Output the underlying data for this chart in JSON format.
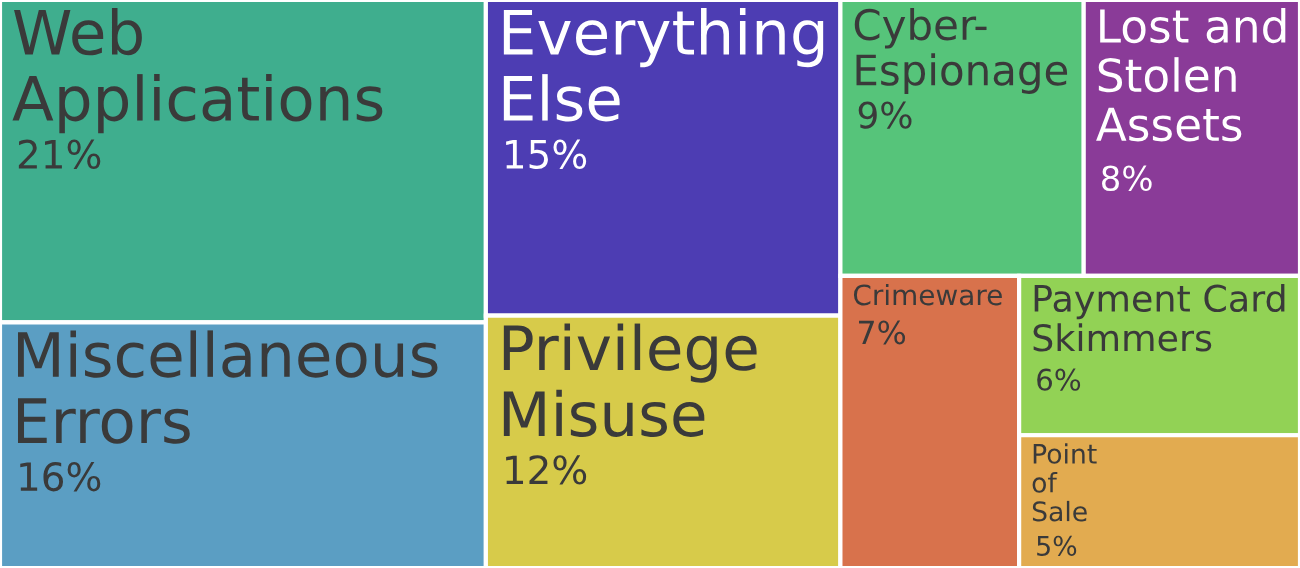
{
  "chart_data": {
    "type": "other",
    "categories": [
      "Web\nApplications",
      "Miscellaneous\nErrors",
      "Everything\nElse",
      "Privilege\nMisuse",
      "Cyber-\nEspionage",
      "Lost and\nStolen\nAssets",
      "Crimeware",
      "Payment Card\nSkimmers",
      "Point\nof\nSale"
    ],
    "values": [
      21,
      16,
      15,
      12,
      9,
      8,
      7,
      6,
      5
    ],
    "value_labels": [
      "21%",
      "16%",
      "15%",
      "12%",
      "9%",
      "8%",
      "7%",
      "6%",
      "5%"
    ],
    "colors": [
      "#3fae8e",
      "#5b9ec3",
      "#4d3db3",
      "#d7cb4a",
      "#56c47a",
      "#8a3b98",
      "#d8724c",
      "#92d255",
      "#e2ab50"
    ]
  }
}
